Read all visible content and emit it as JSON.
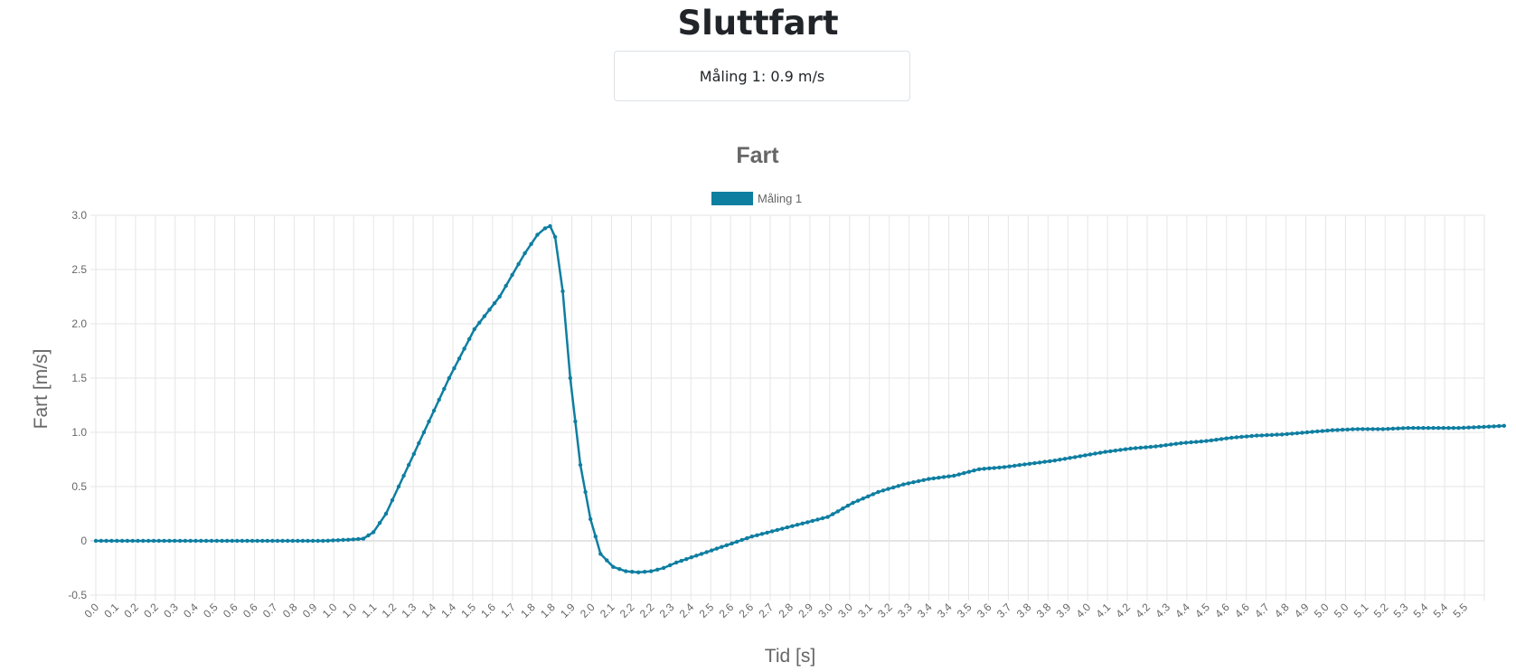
{
  "page": {
    "title": "Sluttfart",
    "result_text": "Måling 1: 0.9 m/s"
  },
  "chart_data": {
    "type": "line",
    "title": "Fart",
    "xlabel": "Tid [s]",
    "ylabel": "Fart [m/s]",
    "ylim": [
      -0.5,
      3.0
    ],
    "y_ticks": [
      "3.0",
      "2.5",
      "2.0",
      "1.5",
      "1.0",
      "0.5",
      "0",
      "-0.5"
    ],
    "x_tick_labels": [
      "0.0",
      "0.1",
      "0.2",
      "0.2",
      "0.3",
      "0.4",
      "0.5",
      "0.6",
      "0.6",
      "0.7",
      "0.8",
      "0.9",
      "1.0",
      "1.0",
      "1.1",
      "1.2",
      "1.3",
      "1.4",
      "1.4",
      "1.5",
      "1.6",
      "1.7",
      "1.8",
      "1.8",
      "1.9",
      "2.0",
      "2.1",
      "2.2",
      "2.2",
      "2.3",
      "2.4",
      "2.5",
      "2.6",
      "2.6",
      "2.7",
      "2.8",
      "2.9",
      "3.0",
      "3.0",
      "3.1",
      "3.2",
      "3.3",
      "3.4",
      "3.4",
      "3.5",
      "3.6",
      "3.7",
      "3.8",
      "3.8",
      "3.9",
      "4.0",
      "4.1",
      "4.2",
      "4.2",
      "4.3",
      "4.4",
      "4.5",
      "4.6",
      "4.6",
      "4.7",
      "4.8",
      "4.9",
      "5.0",
      "5.0",
      "5.1",
      "5.2",
      "5.3",
      "5.4",
      "5.4",
      "5.5"
    ],
    "grid": true,
    "legend_position": "top",
    "series": [
      {
        "name": "Måling 1",
        "color": "#0e7ea1",
        "x": [
          0.0,
          0.5,
          0.9,
          1.0,
          1.06,
          1.1,
          1.15,
          1.2,
          1.3,
          1.4,
          1.5,
          1.6,
          1.65,
          1.7,
          1.75,
          1.78,
          1.8,
          1.82,
          1.85,
          1.88,
          1.92,
          1.96,
          2.0,
          2.05,
          2.1,
          2.15,
          2.2,
          2.25,
          2.3,
          2.4,
          2.5,
          2.6,
          2.7,
          2.8,
          2.9,
          3.0,
          3.1,
          3.2,
          3.3,
          3.4,
          3.5,
          3.6,
          3.7,
          3.8,
          3.9,
          4.0,
          4.1,
          4.2,
          4.3,
          4.4,
          4.5,
          4.6,
          4.7,
          4.8,
          4.9,
          5.0,
          5.1,
          5.2,
          5.3,
          5.4,
          5.5,
          5.58
        ],
        "y": [
          0.0,
          0.0,
          0.0,
          0.01,
          0.02,
          0.08,
          0.25,
          0.5,
          1.0,
          1.5,
          1.95,
          2.25,
          2.45,
          2.65,
          2.82,
          2.88,
          2.9,
          2.8,
          2.3,
          1.5,
          0.7,
          0.2,
          -0.12,
          -0.24,
          -0.28,
          -0.29,
          -0.28,
          -0.25,
          -0.2,
          -0.12,
          -0.04,
          0.04,
          0.1,
          0.16,
          0.22,
          0.35,
          0.45,
          0.52,
          0.57,
          0.6,
          0.66,
          0.68,
          0.71,
          0.74,
          0.78,
          0.82,
          0.85,
          0.87,
          0.9,
          0.92,
          0.95,
          0.97,
          0.98,
          1.0,
          1.02,
          1.03,
          1.03,
          1.04,
          1.04,
          1.04,
          1.05,
          1.06
        ]
      }
    ]
  }
}
